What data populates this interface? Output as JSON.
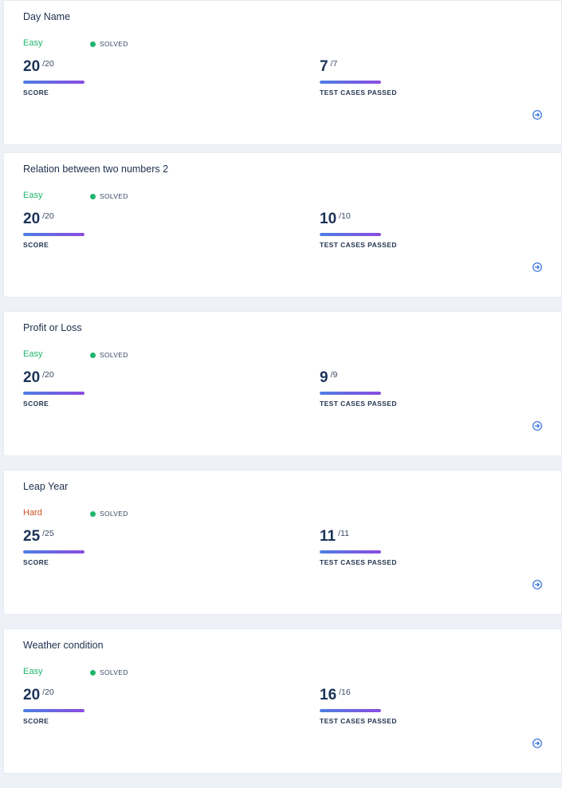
{
  "colors": {
    "easy": "#1fb56e",
    "hard": "#d2521f",
    "solved_dot": "#1fb56e",
    "bar_gradient_start": "#4d7fe3",
    "bar_gradient_end": "#8a4be0",
    "link_icon": "#2d6cdf"
  },
  "icons": {
    "status": "green-dot",
    "open": "arrow-right-circle-icon"
  },
  "challenges": [
    {
      "title": "Day Name",
      "difficulty": "Easy",
      "difficulty_level": "easy",
      "status": "SOLVED",
      "score": {
        "value": "20",
        "total": "/20",
        "label": "SCORE",
        "fraction": 1.0
      },
      "tests": {
        "value": "7",
        "total": "/7",
        "label": "TEST CASES PASSED",
        "fraction": 1.0
      }
    },
    {
      "title": "Relation between two numbers 2",
      "difficulty": "Easy",
      "difficulty_level": "easy",
      "status": "SOLVED",
      "score": {
        "value": "20",
        "total": "/20",
        "label": "SCORE",
        "fraction": 1.0
      },
      "tests": {
        "value": "10",
        "total": "/10",
        "label": "TEST CASES PASSED",
        "fraction": 1.0
      }
    },
    {
      "title": "Profit or Loss",
      "difficulty": "Easy",
      "difficulty_level": "easy",
      "status": "SOLVED",
      "score": {
        "value": "20",
        "total": "/20",
        "label": "SCORE",
        "fraction": 1.0
      },
      "tests": {
        "value": "9",
        "total": "/9",
        "label": "TEST CASES PASSED",
        "fraction": 1.0
      }
    },
    {
      "title": "Leap Year",
      "difficulty": "Hard",
      "difficulty_level": "hard",
      "status": "SOLVED",
      "score": {
        "value": "25",
        "total": "/25",
        "label": "SCORE",
        "fraction": 1.0
      },
      "tests": {
        "value": "11",
        "total": "/11",
        "label": "TEST CASES PASSED",
        "fraction": 1.0
      }
    },
    {
      "title": "Weather condition",
      "difficulty": "Easy",
      "difficulty_level": "easy",
      "status": "SOLVED",
      "score": {
        "value": "20",
        "total": "/20",
        "label": "SCORE",
        "fraction": 1.0
      },
      "tests": {
        "value": "16",
        "total": "/16",
        "label": "TEST CASES PASSED",
        "fraction": 1.0
      }
    }
  ]
}
